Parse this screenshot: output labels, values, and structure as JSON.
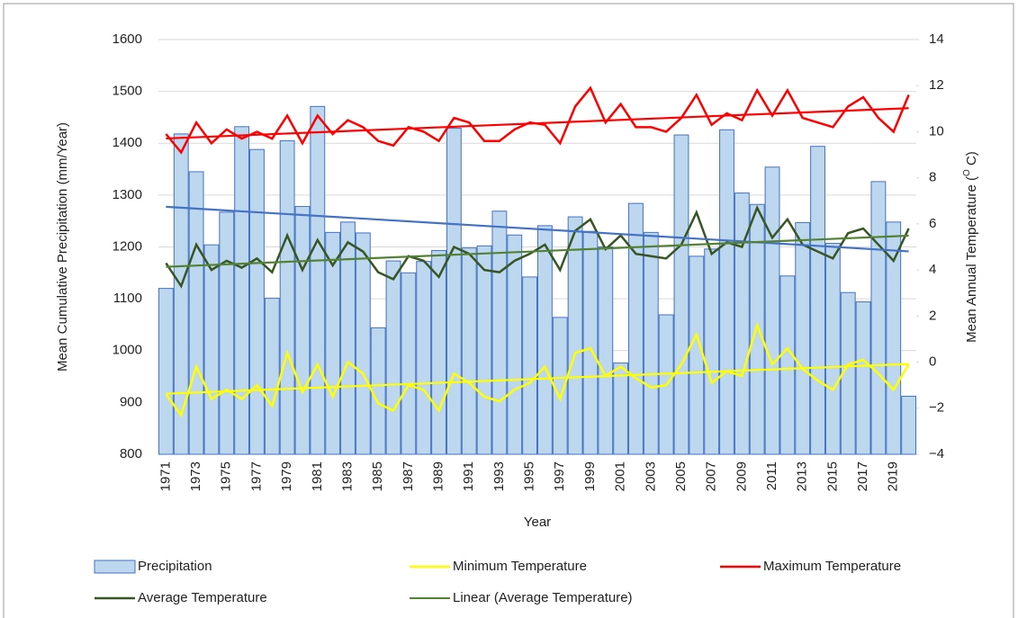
{
  "chart_data": {
    "type": "bar_line",
    "xlabel": "Year",
    "ylabel": "Mean Cumulative Precipitation (mm/Year)",
    "y2label": [
      "Mean Annual Temperature (",
      "O",
      " C)"
    ],
    "categories": [
      "1971",
      null,
      "1973",
      null,
      "1975",
      null,
      "1977",
      null,
      "1979",
      null,
      "1981",
      null,
      "1983",
      null,
      "1985",
      null,
      "1987",
      null,
      "1989",
      null,
      "1991",
      null,
      "1993",
      null,
      "1995",
      null,
      "1997",
      null,
      "1999",
      null,
      "2001",
      null,
      "2003",
      null,
      "2005",
      null,
      "2007",
      null,
      "2009",
      null,
      "2011",
      null,
      "2013",
      null,
      "2015",
      null,
      "2017",
      null,
      "2019",
      null
    ],
    "ylim": [
      800,
      1600
    ],
    "yticks": [
      800,
      900,
      1000,
      1100,
      1200,
      1300,
      1400,
      1500,
      1600
    ],
    "y2lim": [
      -4,
      14
    ],
    "y2ticks": [
      {
        "value": -4,
        "label": "−4"
      },
      {
        "value": -2,
        "label": "−2"
      },
      0,
      2,
      4,
      6,
      8,
      10,
      12,
      14
    ],
    "series": [
      {
        "name": "Precipitation",
        "kind": "bar",
        "color": "#bdd7ee",
        "edge": "#4472c4",
        "trendline": {
          "color": "#4472c4"
        },
        "values": [
          1120,
          1418,
          1345,
          1204,
          1267,
          1432,
          1388,
          1101,
          1405,
          1278,
          1471,
          1228,
          1248,
          1227,
          1044,
          1173,
          1150,
          1172,
          1193,
          1429,
          1198,
          1202,
          1269,
          1223,
          1142,
          1241,
          1064,
          1258,
          1230,
          1200,
          976,
          1284,
          1228,
          1069,
          1416,
          1182,
          1196,
          1426,
          1304,
          1282,
          1354,
          1144,
          1247,
          1394,
          1207,
          1112,
          1094,
          1326,
          1248,
          912
        ]
      },
      {
        "name": "Minimum Temperature",
        "kind": "line",
        "axis": "y2",
        "color": "#ffff00",
        "trendline": {
          "color": "#ffff00"
        },
        "values": [
          -1.4,
          -2.3,
          -0.2,
          -1.6,
          -1.2,
          -1.6,
          -1.0,
          -1.9,
          0.4,
          -1.3,
          -0.1,
          -1.5,
          0.0,
          -0.5,
          -1.8,
          -2.1,
          -1.0,
          -1.2,
          -2.1,
          -0.5,
          -0.9,
          -1.5,
          -1.7,
          -1.2,
          -0.9,
          -0.2,
          -1.6,
          0.4,
          0.6,
          -0.6,
          -0.2,
          -0.7,
          -1.1,
          -1.0,
          -0.1,
          1.2,
          -0.9,
          -0.4,
          -0.6,
          1.6,
          -0.1,
          0.6,
          -0.3,
          -0.8,
          -1.2,
          -0.1,
          0.1,
          -0.5,
          -1.2,
          -0.1
        ]
      },
      {
        "name": "Maximum Temperature",
        "kind": "line",
        "axis": "y2",
        "color": "#ff0000",
        "trendline": {
          "color": "#ff0000"
        },
        "values": [
          9.9,
          9.1,
          10.4,
          9.5,
          10.1,
          9.7,
          10.0,
          9.7,
          10.7,
          9.5,
          10.7,
          9.9,
          10.5,
          10.2,
          9.6,
          9.4,
          10.2,
          10.0,
          9.6,
          10.6,
          10.4,
          9.6,
          9.6,
          10.1,
          10.4,
          10.3,
          9.5,
          11.1,
          11.9,
          10.4,
          11.2,
          10.2,
          10.2,
          10.0,
          10.6,
          11.6,
          10.3,
          10.8,
          10.5,
          11.8,
          10.7,
          11.8,
          10.6,
          10.4,
          10.2,
          11.1,
          11.5,
          10.6,
          10.0,
          11.6
        ]
      },
      {
        "name": "Average  Temperature",
        "kind": "line",
        "axis": "y2",
        "color": "#375623",
        "trendline": {
          "color": "#548235",
          "name": "Linear (Average  Temperature)"
        },
        "values": [
          4.3,
          3.3,
          5.1,
          4.0,
          4.4,
          4.1,
          4.5,
          3.9,
          5.5,
          4.0,
          5.3,
          4.2,
          5.2,
          4.8,
          3.9,
          3.6,
          4.6,
          4.4,
          3.7,
          5.0,
          4.7,
          4.0,
          3.9,
          4.4,
          4.7,
          5.1,
          4.0,
          5.7,
          6.2,
          4.9,
          5.5,
          4.7,
          4.6,
          4.5,
          5.1,
          6.5,
          4.7,
          5.2,
          5.0,
          6.7,
          5.4,
          6.2,
          5.1,
          4.8,
          4.5,
          5.6,
          5.8,
          5.1,
          4.4,
          5.8
        ]
      }
    ],
    "grid": true
  }
}
